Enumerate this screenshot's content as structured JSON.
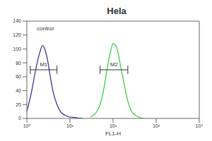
{
  "chart_data": {
    "type": "line",
    "title": "Hela",
    "x_label": "FL1-H",
    "log": "x",
    "xlim": [
      1,
      10000
    ],
    "xticks": [
      {
        "value": 1,
        "label": "10⁰"
      },
      {
        "value": 10,
        "label": "10¹"
      },
      {
        "value": 100,
        "label": "10²"
      },
      {
        "value": 1000,
        "label": "10³"
      },
      {
        "value": 10000,
        "label": "10⁴"
      }
    ],
    "ylim": [
      0,
      140
    ],
    "yticks": [
      0,
      20,
      40,
      60,
      80,
      100,
      120,
      140
    ],
    "series": [
      {
        "name": "control",
        "color": "#2a2a8c",
        "x": [
          1,
          1.3,
          1.6,
          2,
          2.3,
          2.6,
          3,
          3.5,
          4,
          5,
          6,
          8,
          10,
          15,
          20
        ],
        "values": [
          10,
          40,
          70,
          95,
          105,
          100,
          85,
          60,
          40,
          20,
          10,
          4,
          2,
          1,
          0
        ]
      },
      {
        "color": "#33cc33",
        "x": [
          30,
          40,
          50,
          60,
          70,
          80,
          90,
          100,
          115,
          130,
          150,
          180,
          220,
          260,
          320,
          400,
          500
        ],
        "values": [
          2,
          8,
          20,
          40,
          65,
          85,
          100,
          108,
          105,
          95,
          75,
          50,
          25,
          12,
          5,
          2,
          0
        ]
      }
    ],
    "gates": [
      {
        "label": "M1",
        "range": [
          1.2,
          5
        ],
        "y": 70
      },
      {
        "label": "M2",
        "range": [
          50,
          220
        ],
        "y": 70
      }
    ]
  }
}
